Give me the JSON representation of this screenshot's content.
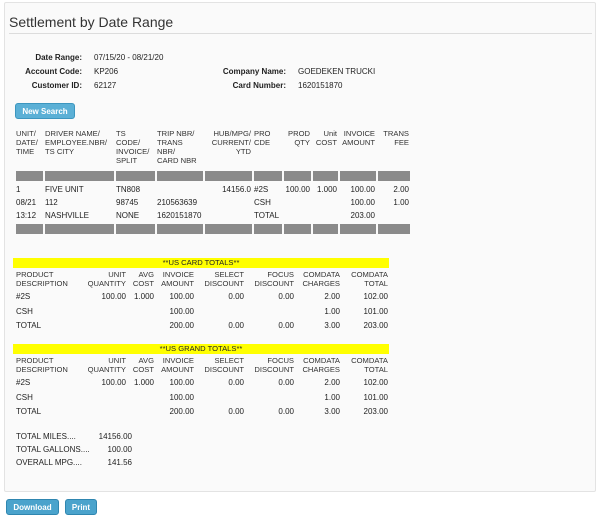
{
  "page": {
    "title": "Settlement by Date Range"
  },
  "info": {
    "date_range_label": "Date Range:",
    "date_range_value": "07/15/20  -  08/21/20",
    "account_code_label": "Account Code:",
    "account_code_value": "KP206",
    "customer_id_label": "Customer ID:",
    "customer_id_value": "62127",
    "company_name_label": "Company Name:",
    "company_name_value": "GOEDEKEN TRUCKI",
    "card_number_label": "Card Number:",
    "card_number_value": "1620151870"
  },
  "buttons": {
    "new_search": "New Search",
    "download": "Download",
    "print": "Print"
  },
  "detail": {
    "headers": [
      "UNIT/\nDATE/\nTIME",
      "DRIVER NAME/\nEMPLOYEE.NBR/\nTS CITY",
      "TS\nCODE/\nINVOICE/\nSPLIT",
      "TRIP NBR/\nTRANS\nNBR/\nCARD NBR",
      "HUB/MPG/\nCURRENT/\nYTD",
      "PRO\nCDE",
      "PROD\nQTY",
      "Unit\nCOST",
      "INVOICE\nAMOUNT",
      "TRANS\nFEE"
    ],
    "rows": [
      [
        "1",
        "FIVE UNIT",
        "TN808",
        "",
        "14156.0",
        "#2S",
        "100.00",
        "1.000",
        "100.00",
        "2.00"
      ],
      [
        "08/21",
        "112",
        "98745",
        "210563639",
        "",
        "CSH",
        "",
        "",
        "100.00",
        "1.00"
      ],
      [
        "13:12",
        "NASHVILLE",
        "NONE",
        "1620151870",
        "",
        "TOTAL",
        "",
        "",
        "203.00",
        ""
      ]
    ]
  },
  "card_totals": {
    "title": "**US CARD TOTALS**",
    "headers": [
      "PRODUCT\nDESCRIPTION",
      "UNIT\nQUANTITY",
      "AVG\nCOST",
      "INVOICE\nAMOUNT",
      "SELECT\nDISCOUNT",
      "FOCUS\nDISCOUNT",
      "COMDATA\nCHARGES",
      "COMDATA\nTOTAL"
    ],
    "rows": [
      [
        "#2S",
        "100.00",
        "1.000",
        "100.00",
        "0.00",
        "0.00",
        "2.00",
        "102.00"
      ],
      [
        "CSH",
        "",
        "",
        "100.00",
        "",
        "",
        "1.00",
        "101.00"
      ],
      [
        "TOTAL",
        "",
        "",
        "200.00",
        "0.00",
        "0.00",
        "3.00",
        "203.00"
      ]
    ]
  },
  "grand_totals": {
    "title": "**US GRAND TOTALS**",
    "headers": [
      "PRODUCT\nDESCRIPTION",
      "UNIT\nQUANTITY",
      "AVG\nCOST",
      "INVOICE\nAMOUNT",
      "SELECT\nDISCOUNT",
      "FOCUS\nDISCOUNT",
      "COMDATA\nCHARGES",
      "COMDATA\nTOTAL"
    ],
    "rows": [
      [
        "#2S",
        "100.00",
        "1.000",
        "100.00",
        "0.00",
        "0.00",
        "2.00",
        "102.00"
      ],
      [
        "CSH",
        "",
        "",
        "100.00",
        "",
        "",
        "1.00",
        "101.00"
      ],
      [
        "TOTAL",
        "",
        "",
        "200.00",
        "0.00",
        "0.00",
        "3.00",
        "203.00"
      ]
    ]
  },
  "summary": {
    "miles_label": "TOTAL MILES....",
    "miles_value": "14156.00",
    "gallons_label": "TOTAL GALLONS....",
    "gallons_value": "100.00",
    "mpg_label": "OVERALL MPG....",
    "mpg_value": "141.56"
  }
}
